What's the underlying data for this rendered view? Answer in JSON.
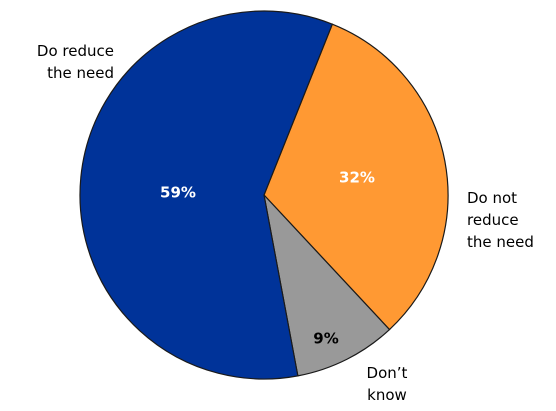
{
  "chart_data": {
    "type": "pie",
    "slices": [
      {
        "label": "Do reduce the need",
        "label_lines": [
          "Do reduce",
          "the need"
        ],
        "value": 59,
        "value_label": "59%",
        "color": "#003399",
        "text_color": "#ffffff"
      },
      {
        "label": "Do not reduce the need",
        "label_lines": [
          "Do not",
          "reduce",
          "the need"
        ],
        "value": 32,
        "value_label": "32%",
        "color": "#ff9933",
        "text_color": "#ffffff"
      },
      {
        "label": "Don't know",
        "label_lines": [
          "Don’t",
          "know"
        ],
        "value": 9,
        "value_label": "9%",
        "color": "#999999",
        "text_color": "#000000"
      }
    ]
  }
}
